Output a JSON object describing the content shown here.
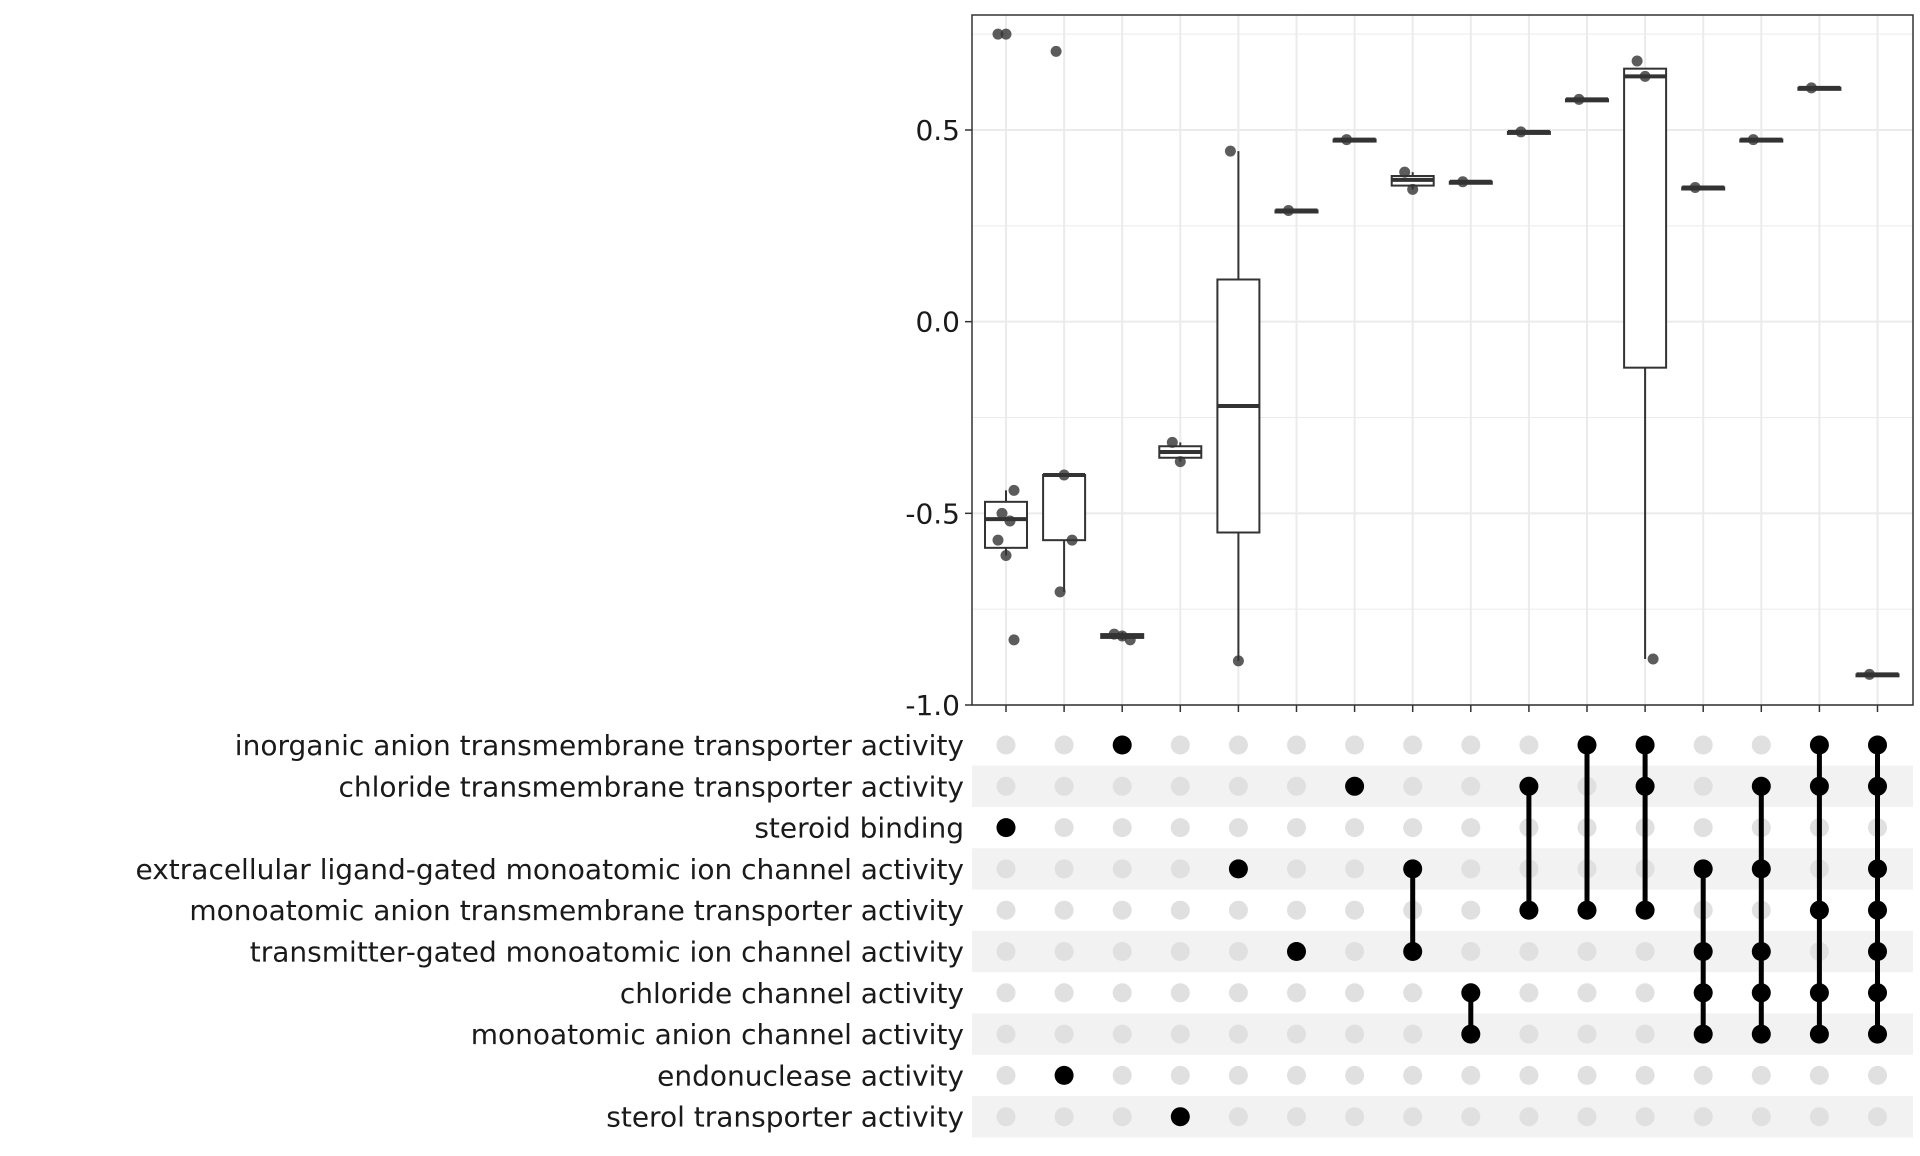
{
  "chart_data": {
    "type": "upset-boxplot",
    "ylim": [
      -1.0,
      0.8
    ],
    "yticks": [
      -1.0,
      -0.5,
      0.0,
      0.5
    ],
    "ytick_labels": [
      "-1.0",
      "-0.5",
      "0.0",
      "0.5"
    ],
    "grid": true,
    "sets": [
      "inorganic anion transmembrane transporter activity",
      "chloride transmembrane transporter activity",
      "steroid binding",
      "extracellular ligand-gated monoatomic ion channel activity",
      "monoatomic anion transmembrane transporter activity",
      "transmitter-gated monoatomic ion channel activity",
      "chloride channel activity",
      "monoatomic anion channel activity",
      "endonuclease activity",
      "sterol transporter activity"
    ],
    "intersections": [
      {
        "members": [
          2
        ],
        "box": {
          "q1": -0.59,
          "median": -0.515,
          "q3": -0.47,
          "whisker_low": -0.61,
          "whisker_high": -0.44
        },
        "points": [
          0.75,
          0.75,
          -0.44,
          -0.5,
          -0.52,
          -0.57,
          -0.61,
          -0.83
        ]
      },
      {
        "members": [
          8
        ],
        "box": {
          "q1": -0.57,
          "median": -0.4,
          "q3": -0.4,
          "whisker_low": -0.705,
          "whisker_high": -0.4
        },
        "points": [
          0.705,
          -0.4,
          -0.57,
          -0.705
        ]
      },
      {
        "members": [
          0
        ],
        "box": {
          "q1": -0.825,
          "median": -0.82,
          "q3": -0.815,
          "whisker_low": -0.83,
          "whisker_high": -0.81
        },
        "points": [
          -0.815,
          -0.82,
          -0.83
        ]
      },
      {
        "members": [
          9
        ],
        "box": {
          "q1": -0.355,
          "median": -0.34,
          "q3": -0.325,
          "whisker_low": -0.365,
          "whisker_high": -0.315
        },
        "points": [
          -0.315,
          -0.365
        ]
      },
      {
        "members": [
          3
        ],
        "box": {
          "q1": -0.55,
          "median": -0.22,
          "q3": 0.11,
          "whisker_low": -0.885,
          "whisker_high": 0.445
        },
        "points": [
          0.445,
          -0.885
        ]
      },
      {
        "members": [
          5
        ],
        "box": {
          "q1": 0.29,
          "median": 0.29,
          "q3": 0.29,
          "whisker_low": 0.29,
          "whisker_high": 0.29
        },
        "points": [
          0.29
        ]
      },
      {
        "members": [
          1
        ],
        "box": {
          "q1": 0.475,
          "median": 0.475,
          "q3": 0.475,
          "whisker_low": 0.475,
          "whisker_high": 0.475
        },
        "points": [
          0.475
        ]
      },
      {
        "members": [
          3,
          5
        ],
        "box": {
          "q1": 0.355,
          "median": 0.37,
          "q3": 0.38,
          "whisker_low": 0.345,
          "whisker_high": 0.39
        },
        "points": [
          0.39,
          0.345
        ]
      },
      {
        "members": [
          6,
          7
        ],
        "box": {
          "q1": 0.365,
          "median": 0.365,
          "q3": 0.365,
          "whisker_low": 0.365,
          "whisker_high": 0.365
        },
        "points": [
          0.365
        ]
      },
      {
        "members": [
          1,
          4
        ],
        "box": {
          "q1": 0.495,
          "median": 0.495,
          "q3": 0.495,
          "whisker_low": 0.495,
          "whisker_high": 0.495
        },
        "points": [
          0.495
        ]
      },
      {
        "members": [
          0,
          4
        ],
        "box": {
          "q1": 0.58,
          "median": 0.58,
          "q3": 0.58,
          "whisker_low": 0.58,
          "whisker_high": 0.58
        },
        "points": [
          0.58
        ]
      },
      {
        "members": [
          0,
          1,
          4
        ],
        "box": {
          "q1": -0.12,
          "median": 0.64,
          "q3": 0.66,
          "whisker_low": -0.88,
          "whisker_high": 0.66
        },
        "points": [
          0.68,
          0.64,
          -0.88
        ]
      },
      {
        "members": [
          3,
          5,
          6,
          7
        ],
        "box": {
          "q1": 0.35,
          "median": 0.35,
          "q3": 0.35,
          "whisker_low": 0.35,
          "whisker_high": 0.35
        },
        "points": [
          0.35
        ]
      },
      {
        "members": [
          1,
          3,
          5,
          6,
          7
        ],
        "box": {
          "q1": 0.475,
          "median": 0.475,
          "q3": 0.475,
          "whisker_low": 0.475,
          "whisker_high": 0.475
        },
        "points": [
          0.475
        ]
      },
      {
        "members": [
          0,
          1,
          4,
          6,
          7
        ],
        "box": {
          "q1": 0.61,
          "median": 0.61,
          "q3": 0.61,
          "whisker_low": 0.61,
          "whisker_high": 0.61
        },
        "points": [
          0.61
        ]
      },
      {
        "members": [
          0,
          1,
          3,
          4,
          5,
          6,
          7
        ],
        "box": {
          "q1": -0.92,
          "median": -0.92,
          "q3": -0.92,
          "whisker_low": -0.92,
          "whisker_high": -0.92
        },
        "points": [
          -0.92
        ]
      }
    ],
    "colors": {
      "active_dot": "#000000",
      "inactive_dot": "#e0e0e0",
      "stripe": "#f2f2f2",
      "grid": "#ebebeb",
      "box_stroke": "#333333",
      "point": "#333333"
    }
  }
}
